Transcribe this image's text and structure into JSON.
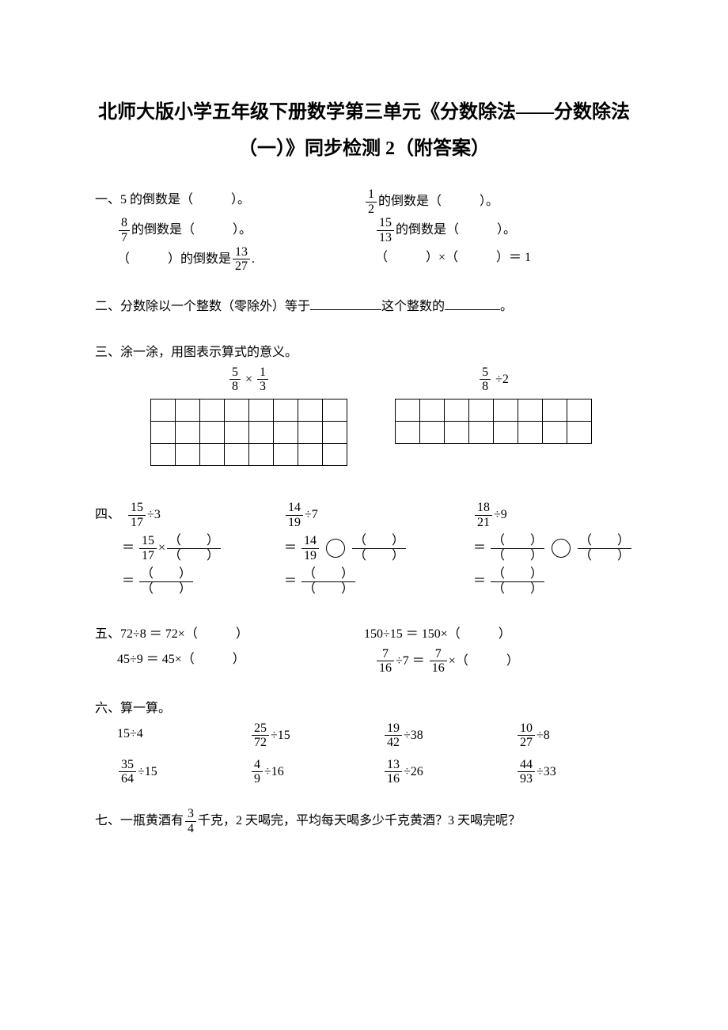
{
  "title_line1": "北师大版小学五年级下册数学第三单元《分数除法——分数除法",
  "title_line2": "（一）》同步检测 2（附答案）",
  "q1": {
    "label": "一、",
    "items": {
      "a_pre": "5 的倒数是（",
      "a_post": "）。",
      "b_pre": "的倒数是（",
      "b_post": "）。",
      "b_frac_n": "1",
      "b_frac_d": "2",
      "c_frac_n": "8",
      "c_frac_d": "7",
      "c_pre": "的倒数是（",
      "c_post": "）。",
      "d_frac_n": "15",
      "d_frac_d": "13",
      "d_pre": "的倒数是（",
      "d_post": "）。",
      "e_pre": "（",
      "e_mid": "）的倒数是",
      "e_frac_n": "13",
      "e_frac_d": "27",
      "e_post": ".",
      "f": "（　　　）×（　　　）＝ 1"
    }
  },
  "q2": {
    "text_a": "二、分数除以一个整数（零除外）等于",
    "text_b": "这个整数的",
    "text_c": "。"
  },
  "q3": {
    "label": "三、涂一涂，用图表示算式的意义。",
    "left_n1": "5",
    "left_d1": "8",
    "left_op": "×",
    "left_n2": "1",
    "left_d2": "3",
    "right_n": "5",
    "right_d": "8",
    "right_op": "÷",
    "right_r": "2",
    "grid_rows": 3,
    "grid_cols": 8,
    "grid2_rows": 2,
    "grid2_cols": 8
  },
  "q4": {
    "label": "四、",
    "c1_l1_n": "15",
    "c1_l1_d": "17",
    "c1_l1_r": "÷3",
    "c1_l2_a_n": "15",
    "c1_l2_a_d": "17",
    "c1_l2_op": "×",
    "c2_l1_n": "14",
    "c2_l1_d": "19",
    "c2_l1_r": "÷7",
    "c2_l2_a_n": "14",
    "c2_l2_a_d": "19",
    "c3_l1_n": "18",
    "c3_l1_d": "21",
    "c3_l1_r": "÷9",
    "paren_blank": "（　　）"
  },
  "q5": {
    "label": "五、",
    "a": "72÷8 ＝ 72×（　　　）",
    "b": "150÷15 ＝ 150×（　　　）",
    "c": "45÷9 ＝ 45×（　　　）",
    "d_n": "7",
    "d_d": "16",
    "d_mid1": "÷7 ＝ ",
    "d_mid2": "×（　　　）"
  },
  "q6": {
    "label": "六、算一算。",
    "items": [
      {
        "type": "plain",
        "text": "15÷4"
      },
      {
        "type": "fracdiv",
        "n": "25",
        "d": "72",
        "r": "÷15"
      },
      {
        "type": "fracdiv",
        "n": "19",
        "d": "42",
        "r": "÷38"
      },
      {
        "type": "fracdiv",
        "n": "10",
        "d": "27",
        "r": "÷8"
      },
      {
        "type": "fracdiv",
        "n": "35",
        "d": "64",
        "r": "÷15"
      },
      {
        "type": "fracdiv",
        "n": "4",
        "d": "9",
        "r": "÷16"
      },
      {
        "type": "fracdiv",
        "n": "13",
        "d": "16",
        "r": "÷26"
      },
      {
        "type": "fracdiv",
        "n": "44",
        "d": "93",
        "r": "÷33"
      }
    ]
  },
  "q7": {
    "pre": "七、一瓶黄酒有",
    "n": "3",
    "d": "4",
    "post": "千克，2 天喝完，平均每天喝多少千克黄酒？3 天喝完呢？"
  }
}
